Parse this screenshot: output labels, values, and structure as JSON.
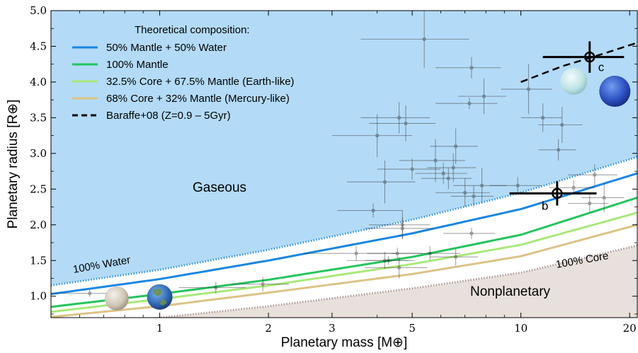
{
  "chart_data": {
    "type": "scatter",
    "xlabel": "Planetary mass [M⊕]",
    "ylabel": "Planetary radius [R⊕]",
    "xscale": "log",
    "xlim": [
      0.5,
      21
    ],
    "ylim": [
      0.7,
      5.0
    ],
    "xticks": [
      1,
      2,
      3,
      5,
      10,
      20
    ],
    "xtick_labels": [
      "1",
      "2",
      "3",
      "5",
      "10",
      "20"
    ],
    "yticks": [
      1.0,
      1.5,
      2.0,
      2.5,
      3.0,
      3.5,
      4.0,
      4.5,
      5.0
    ],
    "ytick_labels": [
      "1.0",
      "1.5",
      "2.0",
      "2.5",
      "3.0",
      "3.5",
      "4.0",
      "4.5",
      "5.0"
    ],
    "legend": {
      "title": "Theoretical composition:",
      "placement": "top-left",
      "entries": [
        {
          "label": "50% Mantle + 50% Water",
          "color": "#1a86e3",
          "style": "solid"
        },
        {
          "label": "100% Mantle",
          "color": "#25c45d",
          "style": "solid"
        },
        {
          "label": "32.5% Core + 67.5% Mantle (Earth-like)",
          "color": "#a9e97b",
          "style": "solid"
        },
        {
          "label": "68% Core + 32% Mantle (Mercury-like)",
          "color": "#dcc387",
          "style": "solid"
        },
        {
          "label": "Baraffe+08 (Z=0.9 – 5Gyr)",
          "color": "#000000",
          "style": "dashed"
        }
      ]
    },
    "region_labels": {
      "gaseous": "Gaseous",
      "nonplanetary": "Nonplanetary",
      "water": "100% Water",
      "core": "100% Core"
    },
    "colors": {
      "gaseous_fill": "#b3dbf7",
      "nonplanetary_fill": "#e8e0dc",
      "water_boundary": "#1a86e3",
      "core_boundary": "#a08b86"
    },
    "curves": [
      {
        "name": "100% Water",
        "x": [
          0.5,
          1,
          2,
          5,
          10,
          21
        ],
        "y": [
          1.15,
          1.37,
          1.65,
          2.07,
          2.45,
          2.95
        ]
      },
      {
        "name": "50% Mantle + 50% Water",
        "x": [
          0.5,
          1,
          2,
          5,
          10,
          21
        ],
        "y": [
          1.03,
          1.24,
          1.5,
          1.88,
          2.22,
          2.72
        ]
      },
      {
        "name": "100% Mantle",
        "x": [
          0.5,
          1,
          2,
          5,
          10,
          21
        ],
        "y": [
          0.85,
          1.03,
          1.23,
          1.55,
          1.86,
          2.38
        ]
      },
      {
        "name": "32.5% Core + 67.5% Mantle (Earth-like)",
        "x": [
          0.5,
          1,
          2,
          5,
          10,
          21
        ],
        "y": [
          0.78,
          0.96,
          1.15,
          1.45,
          1.72,
          2.17
        ]
      },
      {
        "name": "68% Core + 32% Mantle (Mercury-like)",
        "x": [
          0.5,
          1,
          2,
          5,
          10,
          21
        ],
        "y": [
          0.71,
          0.86,
          1.05,
          1.31,
          1.56,
          2.0
        ]
      },
      {
        "name": "100% Core",
        "x": [
          0.5,
          1,
          2,
          5,
          10,
          21
        ],
        "y": [
          0.55,
          0.7,
          0.86,
          1.11,
          1.33,
          1.71
        ]
      },
      {
        "name": "Baraffe+08 (Z=0.9 – 5Gyr)",
        "x": [
          10,
          13,
          17,
          21
        ],
        "y": [
          4.0,
          4.22,
          4.4,
          4.55
        ]
      }
    ],
    "highlighted": [
      {
        "label": "b",
        "x": 12.6,
        "y": 2.44,
        "xerr": [
          3.3,
          3.6
        ],
        "yerr": [
          0.17,
          0.17
        ]
      },
      {
        "label": "c",
        "x": 15.5,
        "y": 4.35,
        "xerr": [
          4.0,
          3.8
        ],
        "yerr": [
          0.22,
          0.22
        ]
      }
    ],
    "points": [
      {
        "x": 0.64,
        "y": 1.04,
        "xerr": 0.15,
        "yerr": 0.05
      },
      {
        "x": 1.43,
        "y": 1.12,
        "xerr": 0.3,
        "yerr": 0.08
      },
      {
        "x": 1.93,
        "y": 1.17,
        "xerr": 0.35,
        "yerr": 0.1
      },
      {
        "x": 3.5,
        "y": 1.6,
        "xerr": 1.0,
        "yerr": 0.1
      },
      {
        "x": 4.2,
        "y": 1.5,
        "xerr": 0.9,
        "yerr": 0.12
      },
      {
        "x": 4.55,
        "y": 1.6,
        "xerr": 0.8,
        "yerr": 0.08
      },
      {
        "x": 4.3,
        "y": 1.5,
        "xerr": 0.6,
        "yerr": 0.06
      },
      {
        "x": 5.6,
        "y": 1.6,
        "xerr": 1.2,
        "yerr": 0.1
      },
      {
        "x": 6.6,
        "y": 1.55,
        "xerr": 1.0,
        "yerr": 0.12
      },
      {
        "x": 4.6,
        "y": 1.4,
        "xerr": 0.9,
        "yerr": 0.15
      },
      {
        "x": 7.3,
        "y": 1.88,
        "xerr": 1.2,
        "yerr": 0.08
      },
      {
        "x": 4.7,
        "y": 1.95,
        "xerr": 1.0,
        "yerr": 0.15
      },
      {
        "x": 3.9,
        "y": 2.2,
        "xerr": 0.8,
        "yerr": 0.1
      },
      {
        "x": 4.7,
        "y": 2.0,
        "xerr": 0.9,
        "yerr": 0.2
      },
      {
        "x": 4.2,
        "y": 2.6,
        "xerr": 0.9,
        "yerr": 0.3
      },
      {
        "x": 5.0,
        "y": 2.78,
        "xerr": 1.0,
        "yerr": 0.15
      },
      {
        "x": 4.8,
        "y": 3.42,
        "xerr": 1.0,
        "yerr": 0.25
      },
      {
        "x": 4.6,
        "y": 3.5,
        "xerr": 1.0,
        "yerr": 0.22
      },
      {
        "x": 4.0,
        "y": 3.25,
        "xerr": 1.0,
        "yerr": 0.3
      },
      {
        "x": 5.4,
        "y": 4.6,
        "xerr": 1.8,
        "yerr": 0.4
      },
      {
        "x": 5.8,
        "y": 2.9,
        "xerr": 1.2,
        "yerr": 0.3
      },
      {
        "x": 6.1,
        "y": 2.72,
        "xerr": 1.0,
        "yerr": 0.15
      },
      {
        "x": 6.5,
        "y": 2.8,
        "xerr": 1.0,
        "yerr": 0.2
      },
      {
        "x": 6.6,
        "y": 3.1,
        "xerr": 1.0,
        "yerr": 0.25
      },
      {
        "x": 6.3,
        "y": 2.65,
        "xerr": 1.0,
        "yerr": 0.15
      },
      {
        "x": 7.0,
        "y": 2.45,
        "xerr": 1.2,
        "yerr": 0.2
      },
      {
        "x": 7.4,
        "y": 2.4,
        "xerr": 1.0,
        "yerr": 0.15
      },
      {
        "x": 7.8,
        "y": 2.55,
        "xerr": 1.3,
        "yerr": 0.25
      },
      {
        "x": 7.2,
        "y": 3.7,
        "xerr": 1.4,
        "yerr": 0.08
      },
      {
        "x": 7.9,
        "y": 3.8,
        "xerr": 1.2,
        "yerr": 0.25
      },
      {
        "x": 7.3,
        "y": 4.2,
        "xerr": 1.5,
        "yerr": 0.15
      },
      {
        "x": 10.5,
        "y": 3.9,
        "xerr": 1.7,
        "yerr": 0.35
      },
      {
        "x": 11.5,
        "y": 3.5,
        "xerr": 1.5,
        "yerr": 0.2
      },
      {
        "x": 13.0,
        "y": 3.4,
        "xerr": 1.8,
        "yerr": 0.25
      },
      {
        "x": 12.7,
        "y": 3.05,
        "xerr": 1.5,
        "yerr": 0.15
      },
      {
        "x": 14.0,
        "y": 2.52,
        "xerr": 2.0,
        "yerr": 0.1
      },
      {
        "x": 16.0,
        "y": 2.7,
        "xerr": 2.5,
        "yerr": 0.15
      },
      {
        "x": 17.0,
        "y": 2.38,
        "xerr": 2.3,
        "yerr": 0.2
      },
      {
        "x": 15.5,
        "y": 2.3,
        "xerr": 2.0,
        "yerr": 0.12
      },
      {
        "x": 9.8,
        "y": 2.55,
        "xerr": 1.6,
        "yerr": 0.12
      }
    ]
  }
}
